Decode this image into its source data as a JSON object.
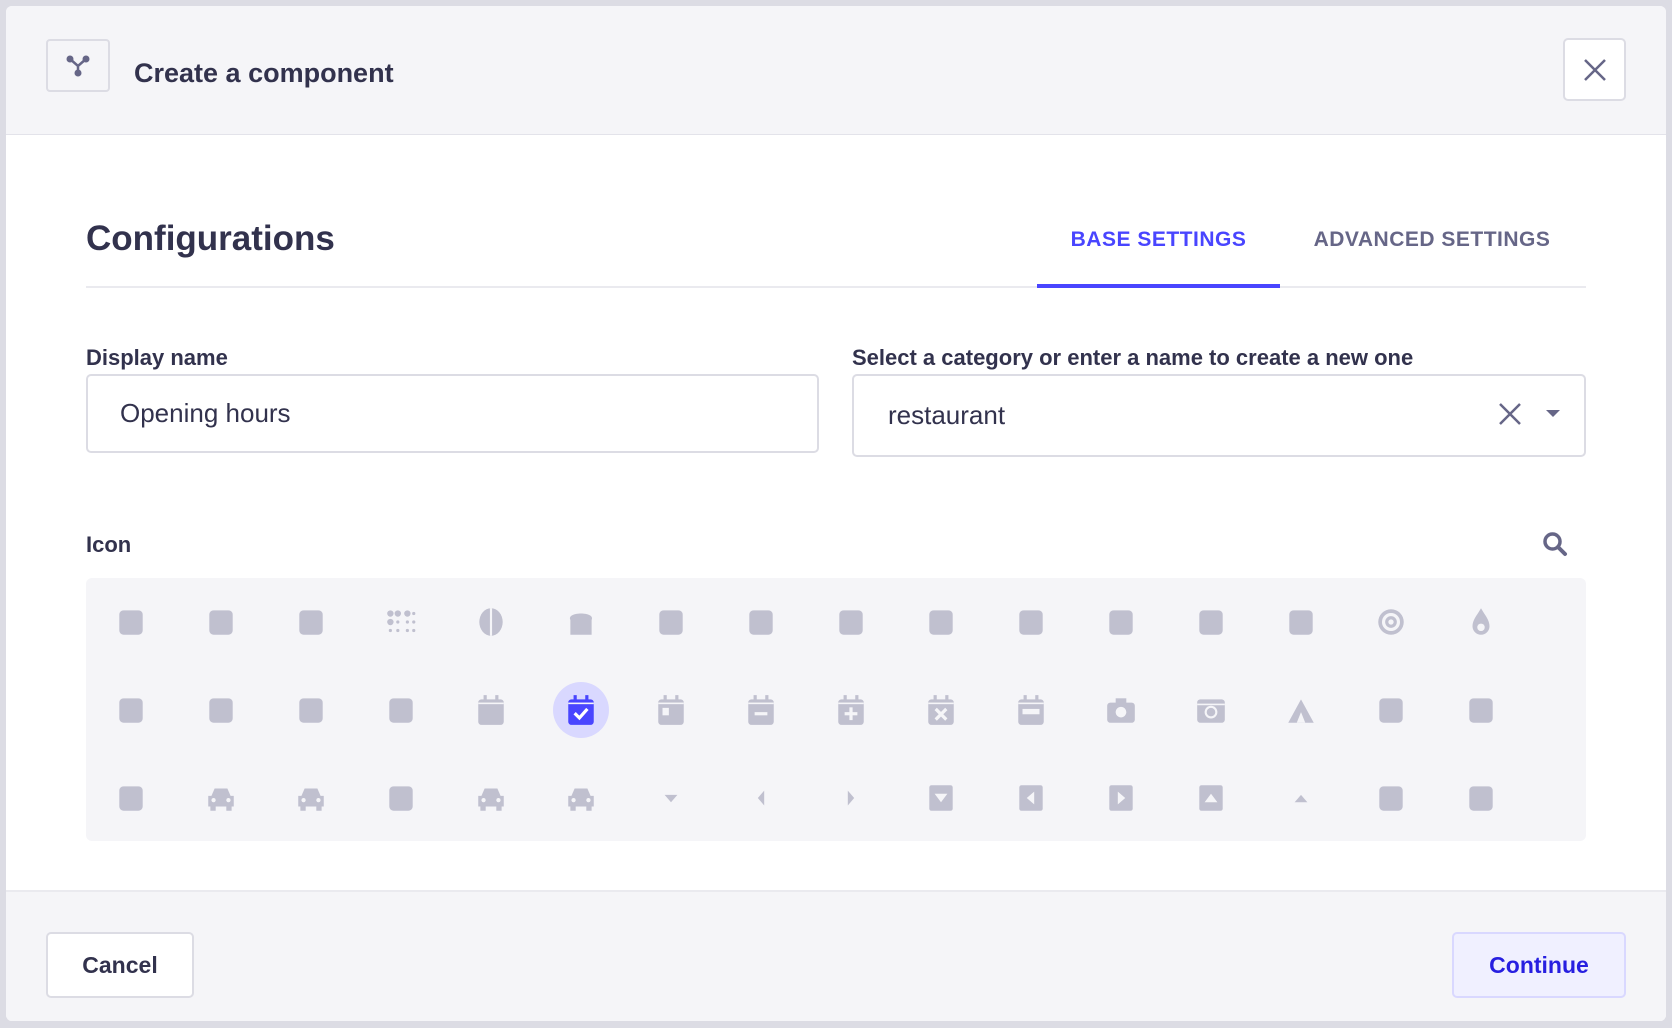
{
  "header": {
    "title": "Create a component",
    "icon": "component-icon",
    "close_icon": "close-icon"
  },
  "config": {
    "heading": "Configurations",
    "tabs": [
      {
        "label": "BASE SETTINGS",
        "active": true
      },
      {
        "label": "ADVANCED SETTINGS",
        "active": false
      }
    ]
  },
  "form": {
    "display_name_label": "Display name",
    "display_name_value": "Opening hours",
    "category_label": "Select a category or enter a name to create a new one",
    "category_value": "restaurant",
    "icon_label": "Icon"
  },
  "icons": {
    "selected": "calendar-check",
    "items": [
      "box",
      "box-open",
      "boxes",
      "braille",
      "brain",
      "bread-slice",
      "briefcase",
      "briefcase-medical",
      "broadcast-tower",
      "broom",
      "brush",
      "bug",
      "building",
      "bullhorn",
      "bullseye",
      "burn",
      "bus",
      "bus-alt",
      "business-time",
      "calculator",
      "calendar",
      "calendar-check",
      "calendar-day",
      "calendar-minus",
      "calendar-plus",
      "calendar-times",
      "calendar-week",
      "camera",
      "camera-retro",
      "campground",
      "candy-cane",
      "cannabis",
      "capsules",
      "car",
      "car-alt",
      "car-battery",
      "car-crash",
      "car-side",
      "caret-down",
      "caret-left",
      "caret-right",
      "caret-square-down",
      "caret-square-left",
      "caret-square-right",
      "caret-square-up",
      "caret-up",
      "carrot",
      "cart-arrow-down"
    ]
  },
  "footer": {
    "cancel_label": "Cancel",
    "continue_label": "Continue"
  },
  "colors": {
    "accent": "#4945ff",
    "icon": "#c0c0cf",
    "selected_bg": "#d9d8ff",
    "text": "#32324d",
    "muted": "#666687"
  }
}
